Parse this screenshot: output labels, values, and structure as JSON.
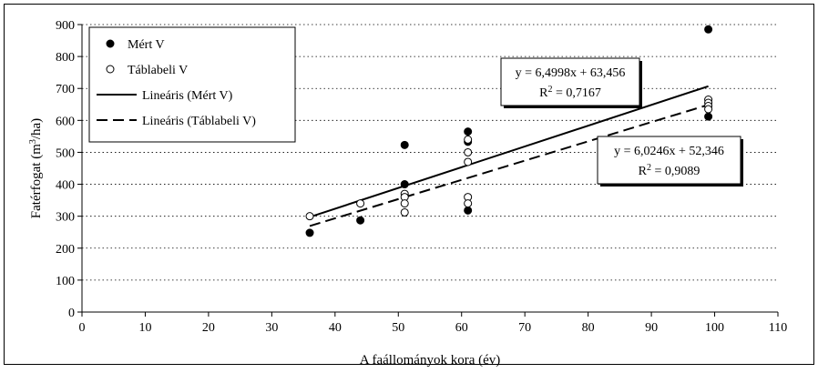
{
  "chart_data": {
    "type": "scatter",
    "xlabel": "A faállományok kora (év)",
    "ylabel": "Fatérfogat (m³/ha)",
    "ylabel_parts": {
      "before": "Fatérfogat (m",
      "sup": "3",
      "after": "/ha)"
    },
    "xlim": [
      0,
      110
    ],
    "ylim": [
      0,
      900
    ],
    "x_ticks": [
      0,
      10,
      20,
      30,
      40,
      50,
      60,
      70,
      80,
      90,
      100,
      110
    ],
    "y_ticks": [
      0,
      100,
      200,
      300,
      400,
      500,
      600,
      700,
      800,
      900
    ],
    "grid": {
      "horizontal": true,
      "style": "dotted"
    },
    "legend_position": "top-left",
    "series": [
      {
        "name": "Mért V",
        "marker": "filled-circle",
        "points": [
          [
            36,
            248
          ],
          [
            44,
            287
          ],
          [
            51,
            523
          ],
          [
            51,
            400
          ],
          [
            61,
            565
          ],
          [
            61,
            533
          ],
          [
            61,
            318
          ],
          [
            99,
            885
          ],
          [
            99,
            612
          ]
        ]
      },
      {
        "name": "Táblabeli V",
        "marker": "open-circle",
        "points": [
          [
            36,
            300
          ],
          [
            44,
            340
          ],
          [
            51,
            370
          ],
          [
            51,
            360
          ],
          [
            51,
            340
          ],
          [
            51,
            312
          ],
          [
            61,
            540
          ],
          [
            61,
            500
          ],
          [
            61,
            470
          ],
          [
            61,
            360
          ],
          [
            61,
            340
          ],
          [
            99,
            665
          ],
          [
            99,
            655
          ],
          [
            99,
            645
          ],
          [
            99,
            635
          ]
        ]
      }
    ],
    "trendlines": [
      {
        "name": "Lineáris (Mért V)",
        "style": "solid",
        "slope": 6.4998,
        "intercept": 63.456,
        "x_range": [
          36,
          99
        ],
        "equation": "y = 6,4998x + 63,456",
        "r2_value": "0,7167"
      },
      {
        "name": "Lineáris (Táblabeli V)",
        "style": "dashed",
        "slope": 6.0246,
        "intercept": 52.346,
        "x_range": [
          36,
          99
        ],
        "equation": "y = 6,0246x + 52,346",
        "r2_value": "0,9089"
      }
    ],
    "r2_label": "R",
    "r2_sup": "2",
    "r2_eq": " = "
  }
}
